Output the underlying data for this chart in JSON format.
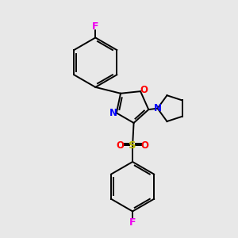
{
  "background_color": "#e8e8e8",
  "bond_color": "#000000",
  "atom_colors": {
    "F": "#ee00ee",
    "O": "#ff0000",
    "N": "#0000ff",
    "S": "#bbbb00",
    "C": "#000000"
  },
  "lw": 1.4
}
